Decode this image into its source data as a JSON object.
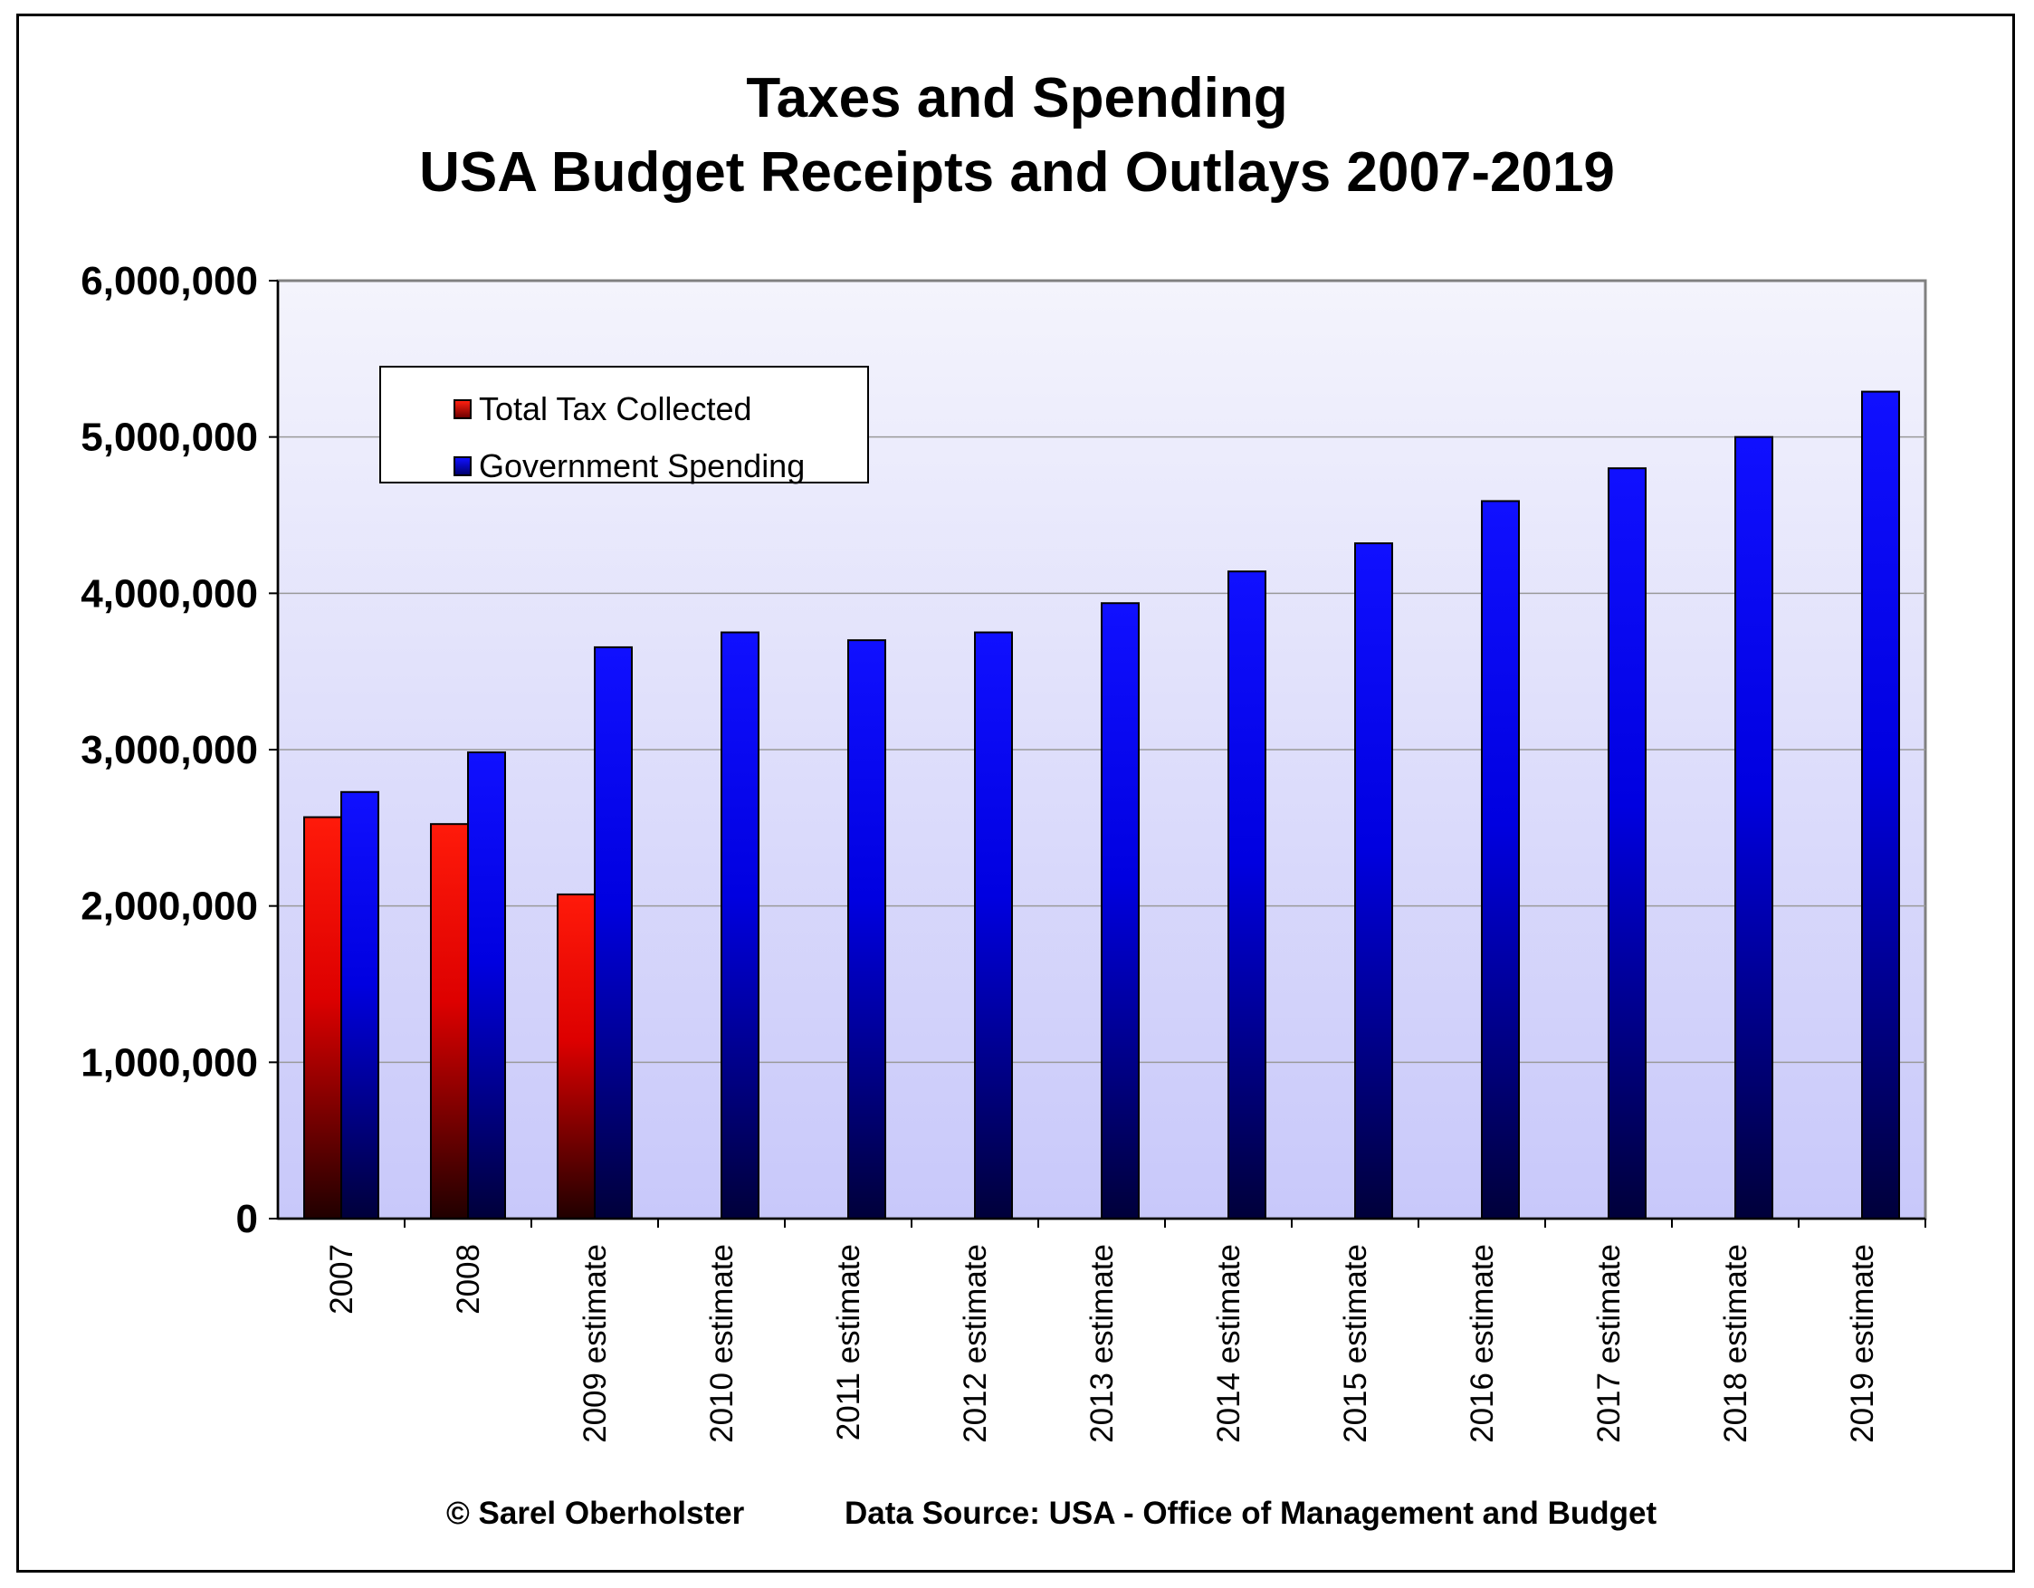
{
  "chart_data": {
    "type": "bar",
    "title": "Taxes and Spending",
    "subtitle": "USA Budget Receipts and Outlays 2007-2019",
    "xlabel": "",
    "ylabel": "",
    "ylim": [
      0,
      6000000
    ],
    "yticks": [
      0,
      1000000,
      2000000,
      3000000,
      4000000,
      5000000,
      6000000
    ],
    "ytick_labels": [
      "0",
      "1,000,000",
      "2,000,000",
      "3,000,000",
      "4,000,000",
      "5,000,000",
      "6,000,000"
    ],
    "grid": true,
    "legend_position": "top-left",
    "categories": [
      "2007",
      "2008",
      "2009 estimate",
      "2010 estimate",
      "2011 estimate",
      "2012 estimate",
      "2013 estimate",
      "2014 estimate",
      "2015 estimate",
      "2016 estimate",
      "2017 estimate",
      "2018 estimate",
      "2019 estimate"
    ],
    "series": [
      {
        "name": "Total Tax Collected",
        "color": "#ff0000",
        "values": [
          2568000,
          2524000,
          2074000,
          null,
          null,
          null,
          null,
          null,
          null,
          null,
          null,
          null,
          null
        ]
      },
      {
        "name": "Government Spending",
        "color": "#0000ff",
        "values": [
          2729000,
          2983000,
          3655000,
          3750000,
          3700000,
          3750000,
          3937000,
          4140000,
          4320000,
          4590000,
          4800000,
          5000000,
          5290000
        ]
      }
    ]
  },
  "footer": {
    "credit": "© Sarel Oberholster",
    "source": "Data Source: USA - Office of Management and Budget"
  }
}
